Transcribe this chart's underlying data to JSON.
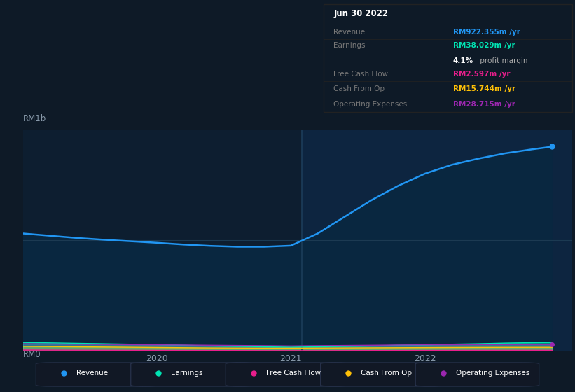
{
  "bg_color": "#0e1a27",
  "plot_bg_left": "#0d1e30",
  "plot_bg_right": "#0d2540",
  "title_date": "Jun 30 2022",
  "table_bg": "#080c10",
  "table_border": "#222222",
  "table_label_color": "#777777",
  "table_rows": [
    {
      "label": "Revenue",
      "value": "RM922.355m /yr",
      "color": "#2196f3",
      "extra": null
    },
    {
      "label": "Earnings",
      "value": "RM38.029m /yr",
      "color": "#00e5b4",
      "extra": "4.1% profit margin"
    },
    {
      "label": "Free Cash Flow",
      "value": "RM2.597m /yr",
      "color": "#e91e8c",
      "extra": null
    },
    {
      "label": "Cash From Op",
      "value": "RM15.744m /yr",
      "color": "#ffc107",
      "extra": null
    },
    {
      "label": "Operating Expenses",
      "value": "RM28.715m /yr",
      "color": "#9c27b0",
      "extra": null
    }
  ],
  "ylabel_top": "RM1b",
  "ylabel_bot": "RM0",
  "x_ticks": [
    2020,
    2021,
    2022
  ],
  "divider_x": 2021.08,
  "revenue_color": "#2196f3",
  "earnings_color": "#00e5b4",
  "fcf_color": "#e91e8c",
  "cashop_color": "#ffc107",
  "opex_color": "#9c27b0",
  "revenue_fill": "#0a2a4a",
  "legend": [
    {
      "label": "Revenue",
      "color": "#2196f3"
    },
    {
      "label": "Earnings",
      "color": "#00e5b4"
    },
    {
      "label": "Free Cash Flow",
      "color": "#e91e8c"
    },
    {
      "label": "Cash From Op",
      "color": "#ffc107"
    },
    {
      "label": "Operating Expenses",
      "color": "#9c27b0"
    }
  ],
  "x_data": [
    2019.0,
    2019.2,
    2019.4,
    2019.6,
    2019.8,
    2020.0,
    2020.2,
    2020.4,
    2020.6,
    2020.8,
    2021.0,
    2021.2,
    2021.4,
    2021.6,
    2021.8,
    2022.0,
    2022.2,
    2022.4,
    2022.6,
    2022.8,
    2022.95
  ],
  "revenue": [
    530,
    520,
    510,
    502,
    495,
    488,
    480,
    474,
    470,
    470,
    475,
    530,
    605,
    680,
    745,
    800,
    840,
    868,
    892,
    910,
    922
  ],
  "earnings": [
    38,
    36,
    34,
    32,
    30,
    28,
    25,
    22,
    20,
    18,
    16,
    18,
    20,
    22,
    25,
    27,
    30,
    32,
    35,
    37,
    38
  ],
  "fcf": [
    4,
    3.5,
    3,
    2.8,
    2.5,
    2.2,
    2,
    1.8,
    1.5,
    1.2,
    1,
    1,
    1.2,
    1.5,
    1.8,
    2,
    2.2,
    2.4,
    2.5,
    2.6,
    2.597
  ],
  "cashop": [
    20,
    19,
    18,
    17,
    16,
    15,
    14,
    13,
    12.5,
    12,
    12,
    12.5,
    13,
    13.5,
    14,
    14.5,
    15,
    15.3,
    15.6,
    15.7,
    15.744
  ],
  "opex": [
    32,
    31,
    30,
    29,
    28,
    27,
    26,
    25,
    24,
    23,
    22,
    23,
    24,
    25,
    26,
    27,
    27.5,
    28,
    28.4,
    28.6,
    28.715
  ],
  "ylim": [
    0,
    1000
  ],
  "xlim": [
    2019.0,
    2023.1
  ],
  "grid_y": 500
}
